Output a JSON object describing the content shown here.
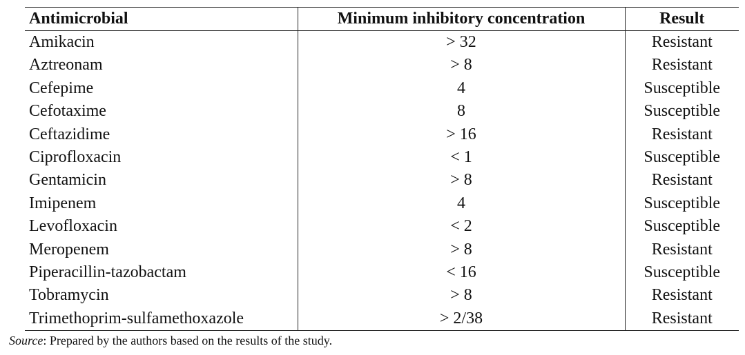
{
  "table": {
    "headers": [
      "Antimicrobial",
      "Minimum inhibitory concentration",
      "Result"
    ],
    "rows": [
      [
        "Amikacin",
        "> 32",
        "Resistant"
      ],
      [
        "Aztreonam",
        "> 8",
        "Resistant"
      ],
      [
        "Cefepime",
        "4",
        "Susceptible"
      ],
      [
        "Cefotaxime",
        "8",
        "Susceptible"
      ],
      [
        "Ceftazidime",
        "> 16",
        "Resistant"
      ],
      [
        "Ciprofloxacin",
        "< 1",
        "Susceptible"
      ],
      [
        "Gentamicin",
        "> 8",
        "Resistant"
      ],
      [
        "Imipenem",
        "4",
        "Susceptible"
      ],
      [
        "Levofloxacin",
        "< 2",
        "Susceptible"
      ],
      [
        "Meropenem",
        "> 8",
        "Resistant"
      ],
      [
        "Piperacillin-tazobactam",
        "< 16",
        "Susceptible"
      ],
      [
        "Tobramycin",
        "> 8",
        "Resistant"
      ],
      [
        "Trimethoprim-sulfamethoxazole",
        "> 2/38",
        "Resistant"
      ]
    ]
  },
  "source_note": {
    "label": "Source",
    "text": ": Prepared by the authors based on the results of the study."
  },
  "colors": {
    "text": "#111111",
    "rule": "#222222",
    "background": "#ffffff"
  }
}
